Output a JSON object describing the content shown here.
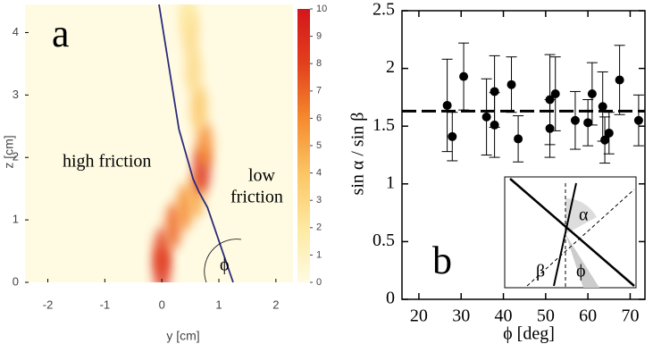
{
  "chart_data": [
    {
      "type": "heatmap",
      "label": "a",
      "xlabel": "y [cm]",
      "ylabel": "z [cm]",
      "xlim": [
        -2.4,
        2.3
      ],
      "ylim": [
        0,
        4.45
      ],
      "xticks": [
        -2,
        -1,
        0,
        1,
        2
      ],
      "yticks": [
        0,
        1,
        2,
        3,
        4
      ],
      "annotations": [
        "high friction",
        "low",
        "friction",
        "ϕ"
      ],
      "colorbar": {
        "lim": [
          0,
          10
        ],
        "ticks": [
          0,
          1,
          2,
          3,
          4,
          5,
          6,
          7,
          8,
          9,
          10
        ],
        "colors": [
          "#fffbe3",
          "#fde9a0",
          "#fbc564",
          "#f58a2e",
          "#e2401c",
          "#d4161c"
        ]
      },
      "x": [
        0,
        0,
        0.2,
        0.4,
        0.6,
        0.7,
        0.75,
        0.65,
        0.55,
        0.5,
        0.45
      ],
      "y": [
        0.2,
        0.5,
        0.9,
        1.2,
        1.4,
        1.8,
        2.2,
        2.8,
        3.4,
        4.0,
        4.35
      ],
      "values": [
        9,
        8,
        7,
        6,
        5,
        9,
        6,
        4,
        3,
        3,
        2
      ],
      "boundary": {
        "x": [
          -0.05,
          0.3,
          0.55,
          0.65,
          0.8,
          1.25
        ],
        "y": [
          4.45,
          2.45,
          1.65,
          1.45,
          1.2,
          0
        ],
        "color": "#2b2b7a"
      }
    },
    {
      "type": "errorbar",
      "label": "b",
      "xlabel": "ϕ [deg]",
      "ylabel": "sin α / sin β",
      "xlim": [
        16,
        73.5
      ],
      "ylim": [
        0,
        2.5
      ],
      "xticks": [
        20,
        30,
        40,
        50,
        60,
        70
      ],
      "yticks": [
        0,
        0.5,
        1,
        1.5,
        2,
        2.5
      ],
      "x": [
        26.7,
        27.9,
        30.6,
        36.0,
        37.9,
        37.9,
        41.9,
        43.5,
        51.0,
        51.0,
        52.3,
        57,
        60,
        61,
        63.5,
        64,
        65,
        67.5,
        72
      ],
      "values": [
        1.68,
        1.41,
        1.93,
        1.58,
        1.8,
        1.51,
        1.86,
        1.39,
        1.73,
        1.48,
        1.78,
        1.55,
        1.53,
        1.78,
        1.67,
        1.38,
        1.44,
        1.9,
        1.55
      ],
      "errors": [
        0.4,
        0.21,
        0.29,
        0.33,
        0.31,
        0.28,
        0.24,
        0.2,
        0.39,
        0.25,
        0.32,
        0.25,
        0.2,
        0.27,
        0.3,
        0.2,
        0.18,
        0.3,
        0.22
      ],
      "color": "#000000",
      "reference": 1.63,
      "inset_labels": [
        "α",
        "β",
        "ϕ"
      ]
    }
  ]
}
